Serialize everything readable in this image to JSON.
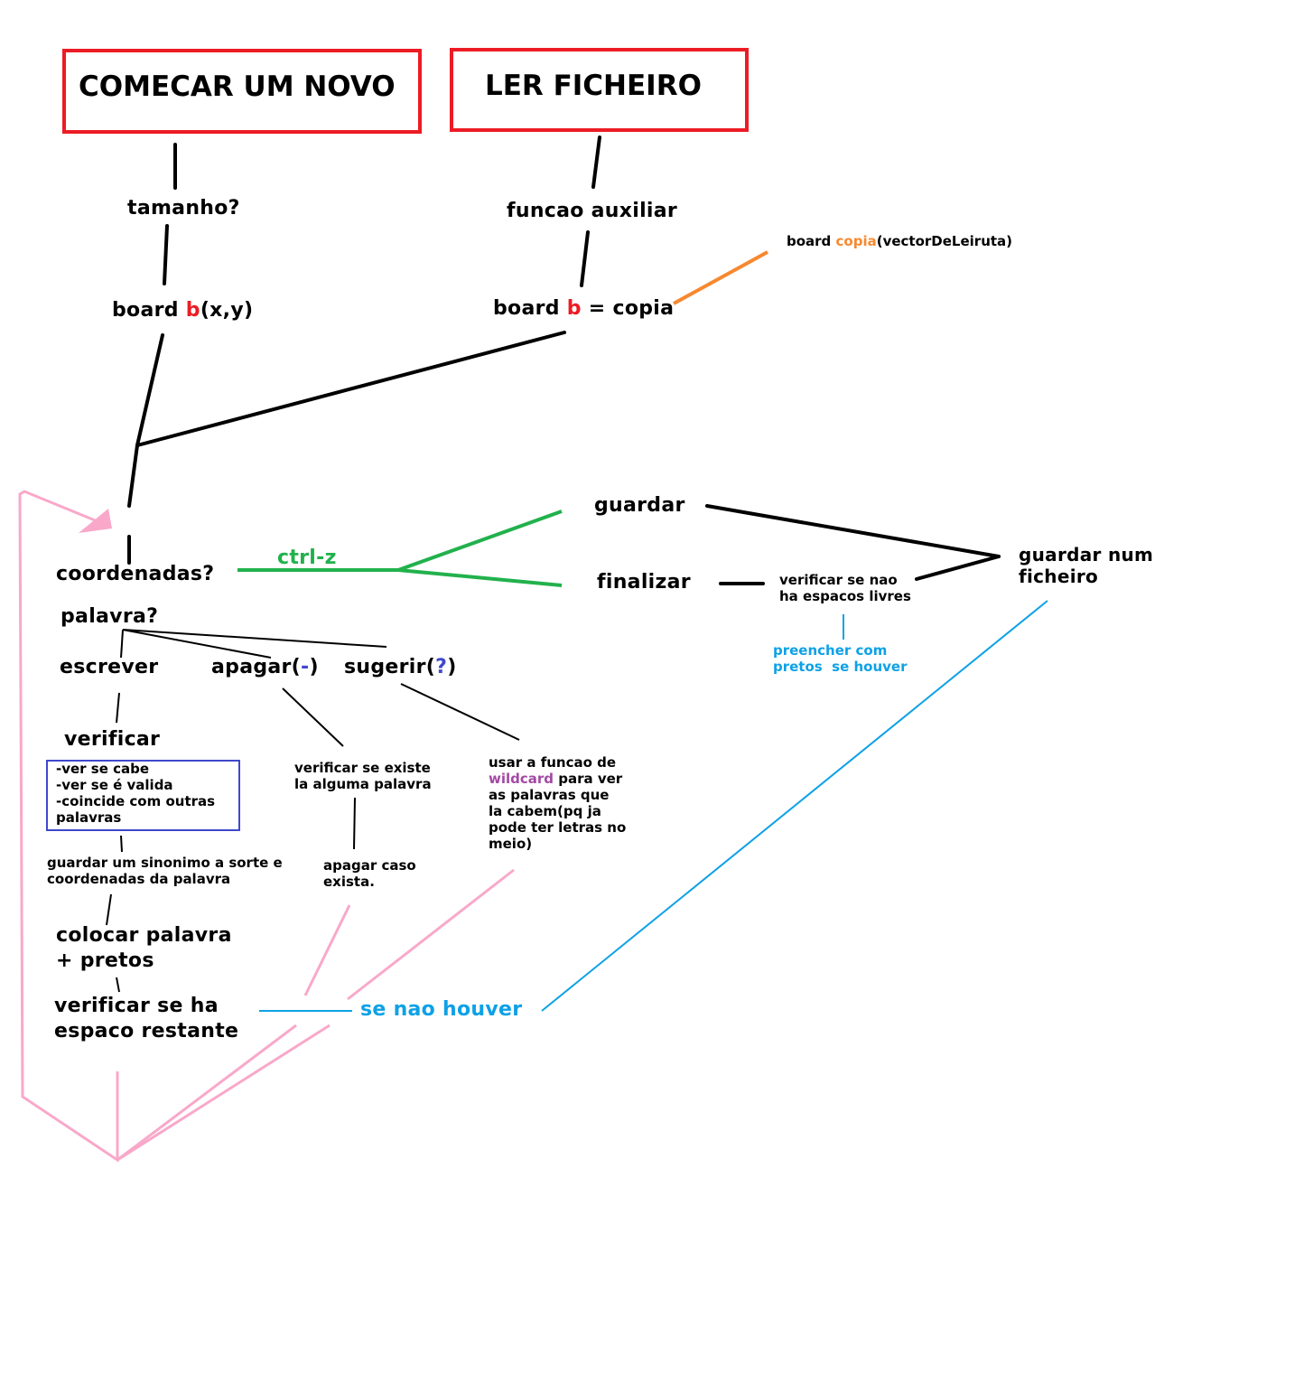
{
  "nodes": {
    "comecar": "COMECAR UM NOVO",
    "ler_ficheiro": "LER FICHEIRO",
    "tamanho": "tamanho?",
    "funcao_auxiliar": "funcao auxiliar",
    "board_copia_sig": {
      "pre": "board ",
      "hl": "copia",
      "post": "(vectorDeLeiruta)"
    },
    "board_new": {
      "pre": "board ",
      "hl": "b",
      "post": "(x,y)"
    },
    "board_copy": {
      "pre": "board ",
      "hl": "b",
      "post": " = copia"
    },
    "guardar": "guardar",
    "finalizar": "finalizar",
    "ctrl_z": "ctrl-z",
    "coordenadas": "coordenadas?",
    "palavra": "palavra?",
    "escrever": "escrever",
    "apagar": {
      "pre": "apagar(",
      "hl": "-",
      "post": ")"
    },
    "sugerir": {
      "pre": "sugerir(",
      "hl": "?",
      "post": ")"
    },
    "verificar": "verificar",
    "verificar_list": "-ver se cabe\n-ver se é valida\n-coincide com outras\npalavras",
    "verificar_existe": "verificar se existe\nla alguma palavra",
    "usar_funcao": {
      "l1": "usar a funcao de",
      "hl": "wildcard",
      "l2": " para ver",
      "rest": "as palavras que\nla cabem(pq ja\npode ter letras no\nmeio)"
    },
    "verificar_espacos": "verificar se nao\nha espacos livres",
    "guardar_num_ficheiro": "guardar num\nficheiro",
    "preencher": "preencher com\npretos  se houver",
    "guardar_sinonimo": "guardar um sinonimo a sorte e\ncoordenadas da palavra",
    "apagar_caso": "apagar caso\nexista.",
    "colocar_palavra": "colocar palavra\n+ pretos",
    "verificar_espaco_restante": "verificar se ha\nespaco restante",
    "se_nao_houver": "se nao houver"
  },
  "colors": {
    "red": "#ec1c24",
    "orange": "#f7882f",
    "green": "#22b14c",
    "blue": "#0ea1e6",
    "pink": "#f9a8c9",
    "navy": "#3f48cc",
    "purple": "#a349a4",
    "black": "#000000"
  }
}
